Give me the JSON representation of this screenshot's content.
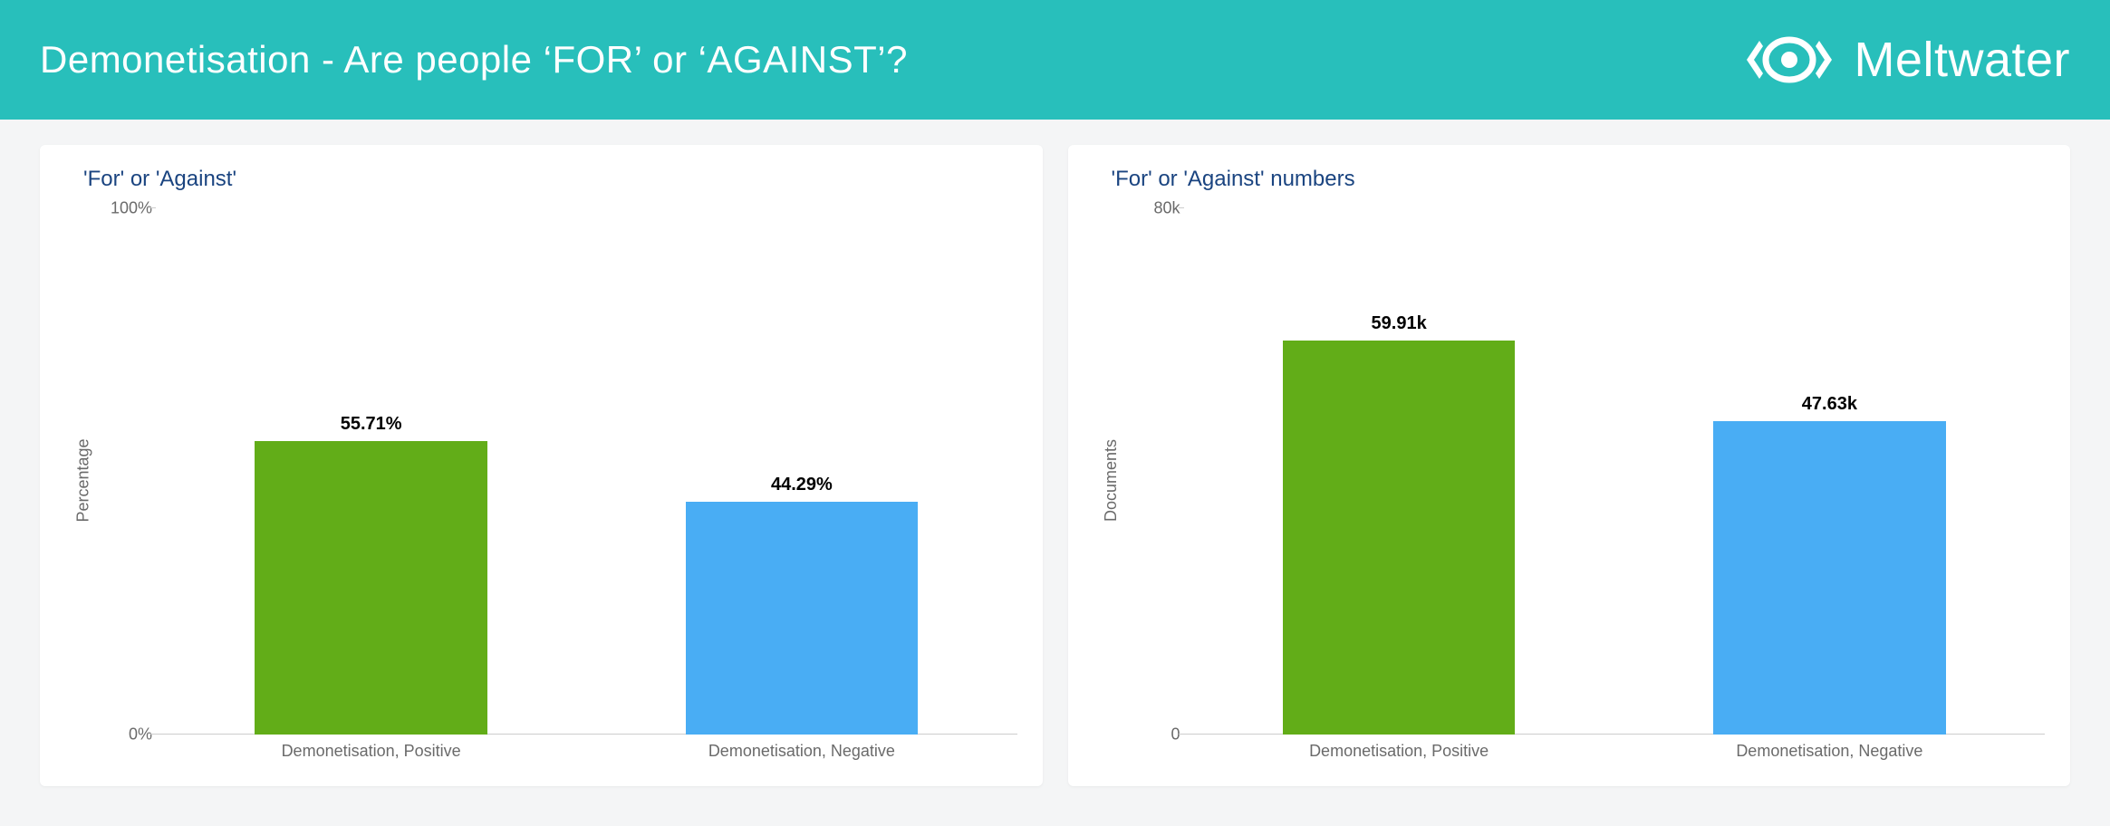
{
  "header": {
    "title": "Demonetisation - Are people ‘FOR’ or ‘AGAINST’?",
    "brand": "Meltwater",
    "logo_color": "#ffffff",
    "background_color": "#28bfbb"
  },
  "page_background": "#f4f5f6",
  "panel_background": "#ffffff",
  "title_color": "#1a4480",
  "tick_label_color": "#6a6a6a",
  "value_label_color": "#000000",
  "charts": [
    {
      "type": "bar",
      "title": "'For' or 'Against'",
      "ylabel": "Percentage",
      "ylim": [
        0,
        100
      ],
      "yticks": [
        {
          "pos": 0,
          "label": "0%"
        },
        {
          "pos": 100,
          "label": "100%"
        }
      ],
      "bars": [
        {
          "category": "Demonetisation, Positive",
          "value": 55.71,
          "display": "55.71%",
          "color": "#62ad18"
        },
        {
          "category": "Demonetisation, Negative",
          "value": 44.29,
          "display": "44.29%",
          "color": "#49adf4"
        }
      ],
      "bar_width_ratio": 0.54,
      "label_fontsize": 20,
      "label_fontweight": 700,
      "tick_fontsize": 18,
      "title_fontsize": 24
    },
    {
      "type": "bar",
      "title": "'For' or 'Against' numbers",
      "ylabel": "Documents",
      "ylim": [
        0,
        80000
      ],
      "yticks": [
        {
          "pos": 0,
          "label": "0"
        },
        {
          "pos": 80000,
          "label": "80k"
        }
      ],
      "bars": [
        {
          "category": "Demonetisation, Positive",
          "value": 59910,
          "display": "59.91k",
          "color": "#62ad18"
        },
        {
          "category": "Demonetisation, Negative",
          "value": 47630,
          "display": "47.63k",
          "color": "#49adf4"
        }
      ],
      "bar_width_ratio": 0.54,
      "label_fontsize": 20,
      "label_fontweight": 700,
      "tick_fontsize": 18,
      "title_fontsize": 24
    }
  ]
}
